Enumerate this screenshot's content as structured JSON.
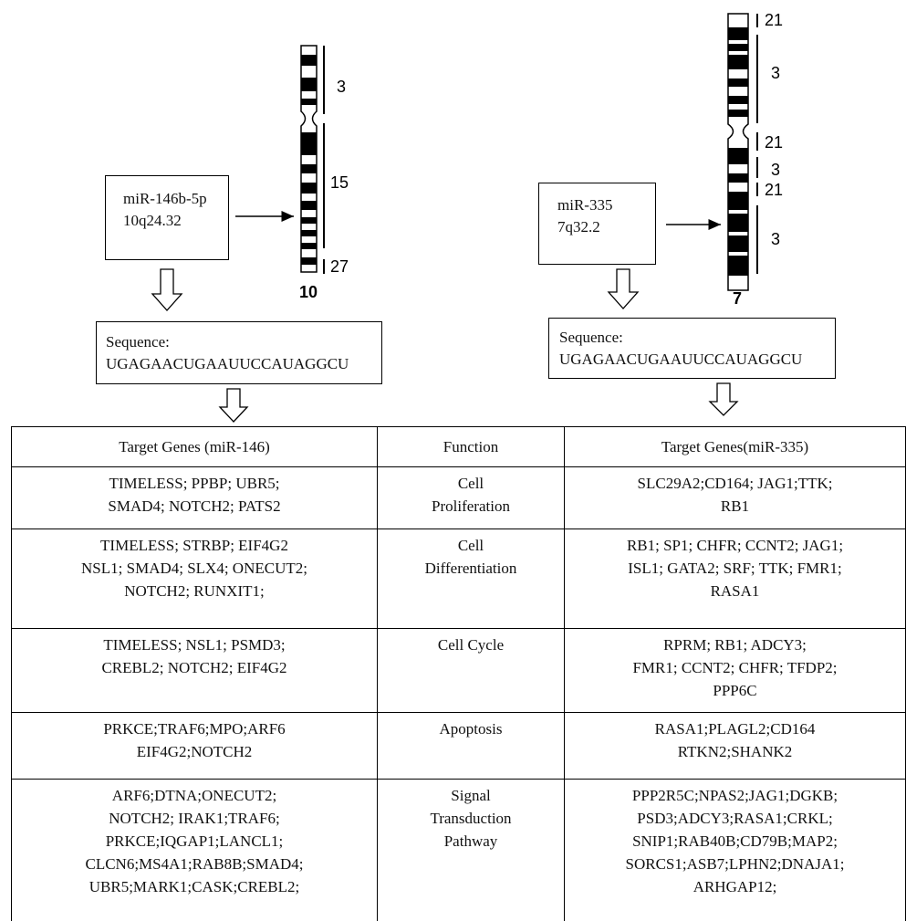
{
  "left": {
    "box": [
      "miR-146b-5p",
      "10q24.32"
    ],
    "chromosome": "10",
    "bands": [
      "3",
      "15",
      "27"
    ],
    "sequence": {
      "label": "Sequence:",
      "value": "UGAGAACUGAAUUCCAUAGGCU"
    }
  },
  "right": {
    "box": [
      "miR-335",
      "7q32.2"
    ],
    "chromosome": "7",
    "bands": [
      "21",
      "3",
      "21",
      "3",
      "21",
      "3"
    ],
    "sequence": {
      "label": "Sequence:",
      "value": "UGAGAACUGAAUUCCAUAGGCU"
    }
  },
  "table": {
    "headers": [
      "Target Genes (miR-146)",
      "Function",
      "Target Genes(miR-335)"
    ],
    "rows": [
      [
        [
          "TIMELESS; PPBP; UBR5;",
          "SMAD4; NOTCH2; PATS2"
        ],
        [
          "Cell",
          "Proliferation"
        ],
        [
          "SLC29A2;CD164; JAG1;TTK;",
          "RB1"
        ]
      ],
      [
        [
          "TIMELESS; STRBP; EIF4G2",
          "NSL1; SMAD4; SLX4; ONECUT2;",
          "NOTCH2; RUNXIT1;"
        ],
        [
          "Cell",
          "Differentiation"
        ],
        [
          "RB1; SP1; CHFR; CCNT2; JAG1;",
          "ISL1; GATA2; SRF; TTK; FMR1;",
          "RASA1"
        ]
      ],
      [
        [
          "TIMELESS; NSL1; PSMD3;",
          "CREBL2; NOTCH2; EIF4G2"
        ],
        [
          "Cell Cycle"
        ],
        [
          "RPRM; RB1; ADCY3;",
          "FMR1; CCNT2; CHFR; TFDP2;",
          "PPP6C"
        ]
      ],
      [
        [
          "PRKCE;TRAF6;MPO;ARF6",
          "EIF4G2;NOTCH2"
        ],
        [
          "Apoptosis"
        ],
        [
          "RASA1;PLAGL2;CD164",
          "RTKN2;SHANK2"
        ]
      ],
      [
        [
          "ARF6;DTNA;ONECUT2;",
          "NOTCH2; IRAK1;TRAF6;",
          "PRKCE;IQGAP1;LANCL1;",
          "CLCN6;MS4A1;RAB8B;SMAD4;",
          "UBR5;MARK1;CASK;CREBL2;"
        ],
        [
          "Signal",
          "Transduction",
          "Pathway"
        ],
        [
          "PPP2R5C;NPAS2;JAG1;DGKB;",
          "PSD3;ADCY3;RASA1;CRKL;",
          "SNIP1;RAB40B;CD79B;MAP2;",
          "SORCS1;ASB7;LPHN2;DNAJA1;",
          "ARHGAP12;"
        ]
      ]
    ]
  }
}
